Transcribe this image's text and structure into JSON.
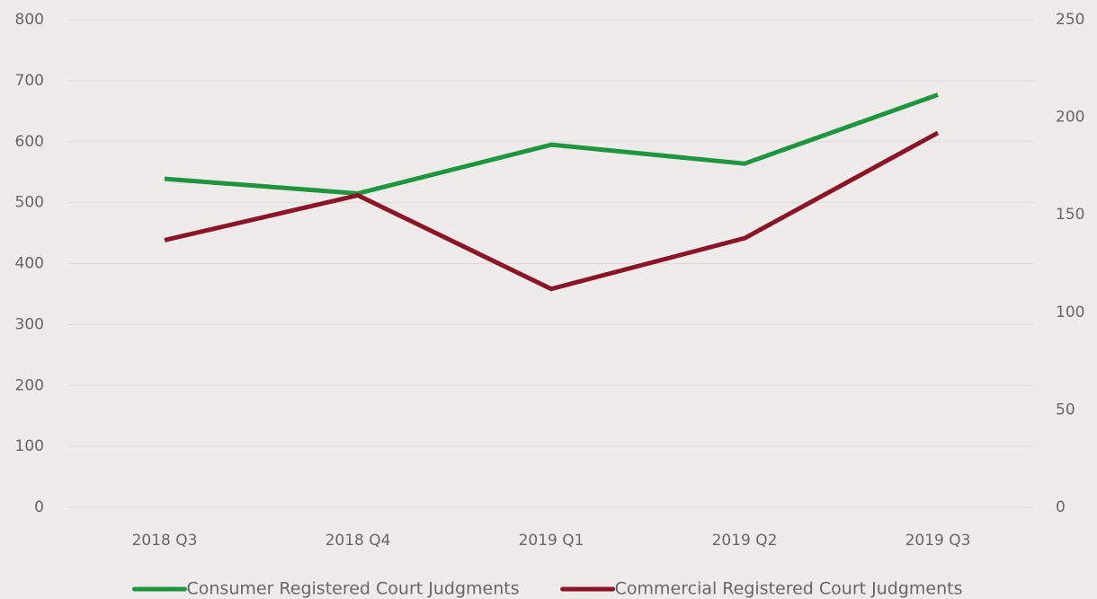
{
  "chart_data": {
    "type": "line",
    "categories": [
      "2018 Q3",
      "2018 Q4",
      "2019 Q1",
      "2019 Q2",
      "2019 Q3"
    ],
    "series": [
      {
        "name": "Consumer Registered Court Judgments",
        "color": "#1e9640",
        "values": [
          539,
          515,
          595,
          564,
          677
        ]
      },
      {
        "name": "Commercial Registered Court Judgments",
        "color": "#8c1428",
        "values": [
          137,
          160,
          112,
          138,
          192
        ],
        "axis": "y2"
      }
    ],
    "ylim": [
      0,
      800
    ],
    "yticks": [
      0,
      100,
      200,
      300,
      400,
      500,
      600,
      700,
      800
    ],
    "y2lim": [
      0,
      250
    ],
    "y2ticks": [
      0,
      50,
      100,
      150,
      200,
      250
    ],
    "grid": true,
    "legend": "bottom"
  }
}
